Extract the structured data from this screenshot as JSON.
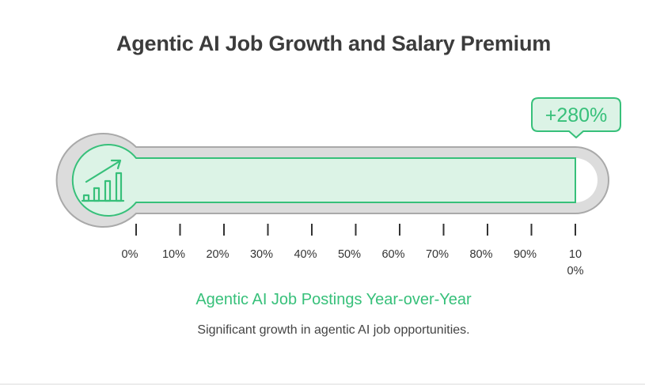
{
  "chart_data": {
    "type": "bar",
    "title": "Agentic AI Job Growth and Salary Premium",
    "subtitle": "Significant growth in agentic AI job opportunities.",
    "series": [
      {
        "name": "Agentic AI Job Postings Year-over-Year",
        "values": [
          100
        ]
      }
    ],
    "value_label": "+280%",
    "xlim": [
      0,
      100
    ],
    "ticks": [
      "0%",
      "10%",
      "20%",
      "30%",
      "40%",
      "50%",
      "60%",
      "70%",
      "80%",
      "90%",
      "100%"
    ],
    "grid": false,
    "orientation": "horizontal",
    "style": "thermometer"
  },
  "icon": "growth-bar-chart-icon",
  "colors": {
    "accent": "#37c07a",
    "fill": "#dcf3e6",
    "tube": "#dcdcdc",
    "outline": "#a9a9a9",
    "title": "#3c3c3c"
  }
}
